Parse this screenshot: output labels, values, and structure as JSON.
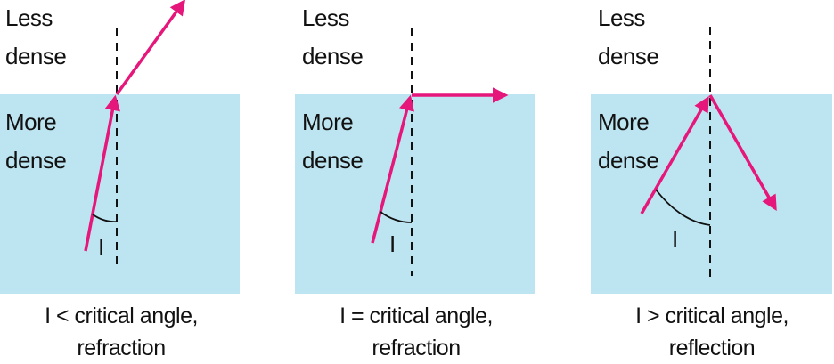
{
  "colors": {
    "water": "#bde5f1",
    "ray": "#e6177b",
    "line": "#111111"
  },
  "panels": [
    {
      "less_line1": "Less",
      "less_line2": "dense",
      "more_line1": "More",
      "more_line2": "dense",
      "angle_label": "I",
      "caption_line1": "I < critical angle,",
      "caption_line2": "refraction"
    },
    {
      "less_line1": "Less",
      "less_line2": "dense",
      "more_line1": "More",
      "more_line2": "dense",
      "angle_label": "I",
      "caption_line1": "I = critical angle,",
      "caption_line2": "refraction"
    },
    {
      "less_line1": "Less",
      "less_line2": "dense",
      "more_line1": "More",
      "more_line2": "dense",
      "angle_label": "I",
      "caption_line1": "I > critical angle,",
      "caption_line2": "reflection"
    }
  ]
}
